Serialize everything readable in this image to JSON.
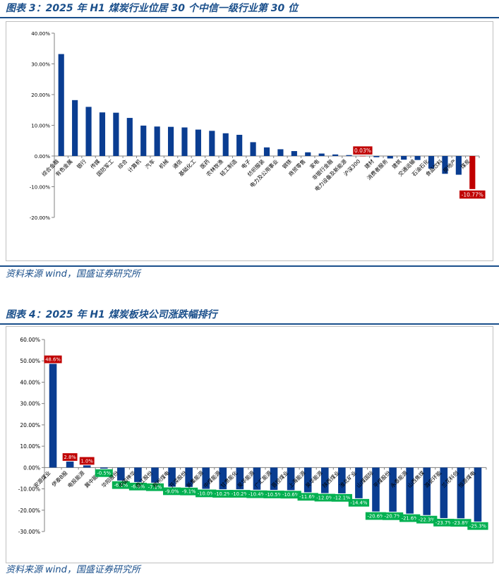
{
  "figure3": {
    "title": "图表 3：2025 年 H1 煤炭行业位居 30 个中信一级行业第 30 位",
    "source": "资料来源 wind，国盛证券研究所"
  },
  "figure4": {
    "title": "图表 4：2025 年 H1 煤炭板块公司涨跌幅排行",
    "source": "资料来源 wind，国盛证券研究所"
  },
  "colors": {
    "accent": "#1a4f8b",
    "bar": "#0a3d91",
    "highlight": "#c00000",
    "label_green": "#00b050"
  },
  "chart_data": [
    {
      "type": "bar",
      "title": "",
      "xlabel": "",
      "ylabel": "",
      "ylim": [
        -20,
        40
      ],
      "yticks": [
        "40.00%",
        "30.00%",
        "20.00%",
        "10.00%",
        "0.00%",
        "-10.00%",
        "-20.00%"
      ],
      "ytick_values": [
        40,
        30,
        20,
        10,
        0,
        -10,
        -20
      ],
      "grid": false,
      "categories": [
        "综合金融",
        "有色金属",
        "银行",
        "传媒",
        "国防军工",
        "综合",
        "计算机",
        "汽车",
        "机械",
        "通信",
        "基础化工",
        "医药",
        "农林牧渔",
        "轻工制造",
        "电子",
        "纺织服装",
        "电力及公用事业",
        "钢铁",
        "商贸零售",
        "家电",
        "非银行金融",
        "电力设备及新能源",
        "沪深300",
        "建材",
        "消费者服务",
        "建筑",
        "交通运输",
        "石油石化",
        "食品饮料",
        "房地产",
        "煤炭"
      ],
      "values": [
        33.2,
        18.2,
        16.0,
        14.2,
        14.1,
        12.4,
        9.9,
        9.6,
        9.5,
        9.3,
        8.6,
        8.2,
        7.4,
        6.9,
        4.5,
        2.8,
        2.2,
        1.6,
        1.2,
        0.8,
        0.5,
        0.3,
        0.03,
        -0.4,
        -0.8,
        -1.2,
        -1.3,
        -4.1,
        -5.8,
        -6.1,
        -10.77
      ],
      "data_labels": {
        "22": "0.03%",
        "30": "-10.77%"
      },
      "highlight_indices": [
        22,
        30
      ]
    },
    {
      "type": "bar",
      "title": "",
      "xlabel": "",
      "ylabel": "",
      "ylim": [
        -30,
        60
      ],
      "yticks": [
        "60.00%",
        "50.00%",
        "40.00%",
        "30.00%",
        "20.00%",
        "10.00%",
        "0.00%",
        "-10.00%",
        "-20.00%",
        "-30.00%"
      ],
      "ytick_values": [
        60,
        50,
        40,
        30,
        20,
        10,
        0,
        -10,
        -20,
        -30
      ],
      "grid": false,
      "categories": [
        "安源煤业",
        "伊泰B股",
        "电投能源",
        "冀中能源",
        "华阳股份",
        "中国神华",
        "盘江股份",
        "郑州煤电",
        "开滦股份",
        "新集能源",
        "中煤能源",
        "甘肃能化",
        "昊华能源",
        "广汇能源",
        "晋控煤业",
        "上海能源",
        "昊华能源",
        "陕西煤业",
        "淮北矿业",
        "山煤国际",
        "平煤股份",
        "永泰能源",
        "山西焦煤",
        "潞安环能",
        "兰花科创",
        "恒源煤电"
      ],
      "values": [
        48.6,
        2.8,
        1.0,
        -0.5,
        -6.1,
        -6.8,
        -7.1,
        -9.0,
        -9.1,
        -10.0,
        -10.2,
        -10.2,
        -10.4,
        -10.5,
        -10.6,
        -11.6,
        -12.0,
        -12.1,
        -14.4,
        -20.6,
        -20.7,
        -21.6,
        -22.3,
        -23.7,
        -23.8,
        -25.3
      ],
      "data_labels": [
        "48.6%",
        "2.8%",
        "1.0%",
        "-0.5%",
        "-6.1%",
        "-6.8%",
        "-7.1%",
        "-9.0%",
        "-9.1%",
        "-10.0%",
        "-10.2%",
        "-10.2%",
        "-10.4%",
        "-10.5%",
        "-10.6%",
        "-11.6%",
        "-12.0%",
        "-12.1%",
        "-14.4%",
        "-20.6%",
        "-20.7%",
        "-21.6%",
        "-22.3%",
        "-23.7%",
        "-23.8%",
        "-25.3%"
      ],
      "label_colors": "red for the top three, green for the rest"
    }
  ]
}
